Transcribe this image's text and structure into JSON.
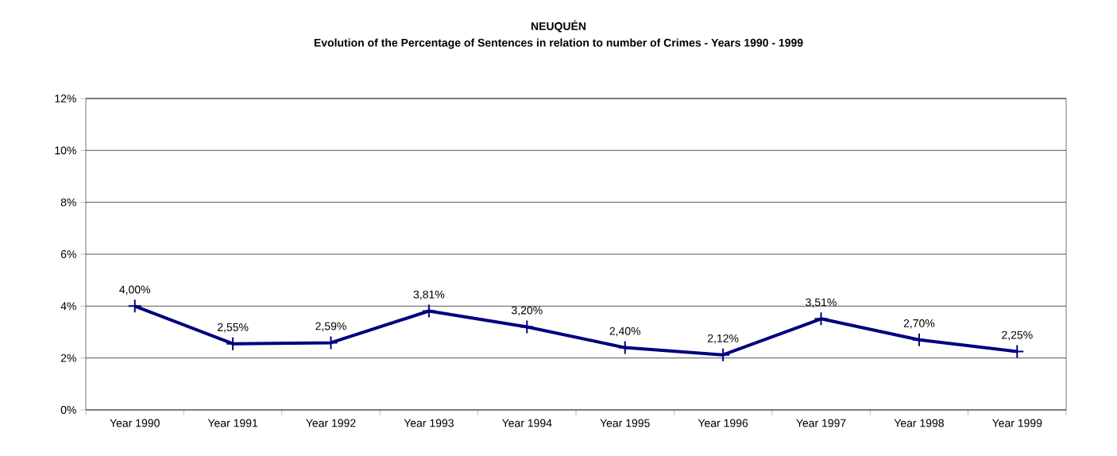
{
  "chart_data": {
    "type": "line",
    "title": "NEUQUÉN",
    "subtitle": "Evolution of the Percentage of Sentences in relation to number of Crimes - Years 1990 - 1999",
    "categories": [
      "Year 1990",
      "Year 1991",
      "Year 1992",
      "Year 1993",
      "Year 1994",
      "Year 1995",
      "Year 1996",
      "Year 1997",
      "Year 1998",
      "Year 1999"
    ],
    "series": [
      {
        "color": "#000080",
        "values": [
          4.0,
          2.55,
          2.59,
          3.81,
          3.2,
          2.4,
          2.12,
          3.51,
          2.7,
          2.25
        ],
        "value_labels": [
          "4,00%",
          "2,55%",
          "2,59%",
          "3,81%",
          "3,20%",
          "2,40%",
          "2,12%",
          "3,51%",
          "2,70%",
          "2,25%"
        ]
      }
    ],
    "ylim": [
      0,
      12
    ],
    "yticks": [
      {
        "value": 0,
        "label": "0%"
      },
      {
        "value": 2,
        "label": "2%"
      },
      {
        "value": 4,
        "label": "4%"
      },
      {
        "value": 6,
        "label": "6%"
      },
      {
        "value": 8,
        "label": "8%"
      },
      {
        "value": 10,
        "label": "10%"
      },
      {
        "value": 12,
        "label": "12%"
      }
    ],
    "grid": "y",
    "marker": "cross",
    "line_style": "solid"
  }
}
